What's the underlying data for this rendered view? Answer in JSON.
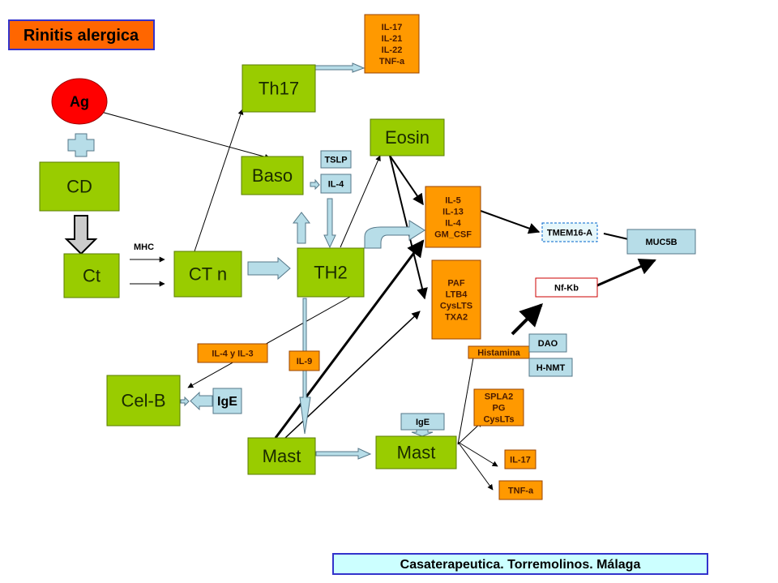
{
  "title": "Rinitis alergica",
  "footer": "Casaterapeutica. Torremolinos. Málaga",
  "edge_label_mhc": "MHC",
  "colors": {
    "cell_green": "#99cc00",
    "cytokine_orange": "#ff9900",
    "receptor_blue": "#b7dde8",
    "antigen_red": "#ff0000",
    "title_bg": "#ff6600",
    "title_border": "#3333cc",
    "footer_bg": "#ccffff"
  },
  "nodes": {
    "ag": {
      "lines": [
        "Ag"
      ],
      "kind": "antigen"
    },
    "cd": {
      "lines": [
        "CD"
      ],
      "kind": "cell"
    },
    "ct": {
      "lines": [
        "Ct"
      ],
      "kind": "cell"
    },
    "ctn": {
      "lines": [
        "CT n"
      ],
      "kind": "cell"
    },
    "th17": {
      "lines": [
        "Th17"
      ],
      "kind": "cell"
    },
    "th17_cytokines": {
      "lines": [
        "IL-17",
        "IL-21",
        "IL-22",
        "TNF-a"
      ],
      "kind": "cytokine"
    },
    "baso": {
      "lines": [
        "Baso"
      ],
      "kind": "cell"
    },
    "tslp": {
      "lines": [
        "TSLP"
      ],
      "kind": "receptor"
    },
    "il4_small": {
      "lines": [
        "IL-4"
      ],
      "kind": "receptor"
    },
    "eosin": {
      "lines": [
        "Eosin"
      ],
      "kind": "cell"
    },
    "th2": {
      "lines": [
        "TH2"
      ],
      "kind": "cell"
    },
    "th2_cytokines": {
      "lines": [
        "IL-5",
        "IL-13",
        "IL-4",
        "GM_CSF"
      ],
      "kind": "cytokine"
    },
    "mediators": {
      "lines": [
        "PAF",
        "LTB4",
        "CysLTS",
        "TXA2"
      ],
      "kind": "cytokine"
    },
    "tmem16a": {
      "lines": [
        "TMEM16-A"
      ],
      "kind": "dashed"
    },
    "muc5b": {
      "lines": [
        "MUC5B"
      ],
      "kind": "receptor"
    },
    "nfkb": {
      "lines": [
        "Nf-Kb"
      ],
      "kind": "outline"
    },
    "histamina": {
      "lines": [
        "Histamina"
      ],
      "kind": "cytokine"
    },
    "dao": {
      "lines": [
        "DAO"
      ],
      "kind": "receptor"
    },
    "hnmt": {
      "lines": [
        "H-NMT"
      ],
      "kind": "receptor"
    },
    "il4_il3": {
      "lines": [
        "IL-4 y IL-3"
      ],
      "kind": "cytokine"
    },
    "il9": {
      "lines": [
        "IL-9"
      ],
      "kind": "cytokine"
    },
    "celb": {
      "lines": [
        "Cel-B"
      ],
      "kind": "cell"
    },
    "ige_celb": {
      "lines": [
        "IgE"
      ],
      "kind": "receptor"
    },
    "mast1": {
      "lines": [
        "Mast"
      ],
      "kind": "cell"
    },
    "mast2": {
      "lines": [
        "Mast"
      ],
      "kind": "cell"
    },
    "ige_mast": {
      "lines": [
        "IgE"
      ],
      "kind": "receptor"
    },
    "mast_mediators": {
      "lines": [
        "SPLA2",
        "PG",
        "CysLTs"
      ],
      "kind": "cytokine"
    },
    "il17_mast": {
      "lines": [
        "IL-17"
      ],
      "kind": "cytokine"
    },
    "tnfa_mast": {
      "lines": [
        "TNF-a"
      ],
      "kind": "cytokine"
    }
  }
}
